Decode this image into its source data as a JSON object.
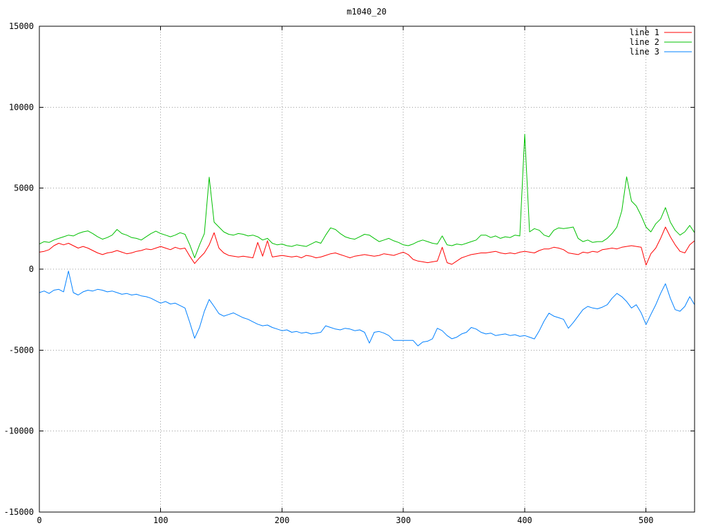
{
  "title": "m1040_20",
  "colors": {
    "background": "#ffffff",
    "border": "#000000",
    "grid": "#9a9a9a",
    "text": "#000000"
  },
  "chart_data": {
    "type": "line",
    "title": "m1040_20",
    "xlabel": "",
    "ylabel": "",
    "xlim": [
      0,
      540
    ],
    "ylim": [
      -15000,
      15000
    ],
    "x_ticks": [
      0,
      100,
      200,
      300,
      400,
      500
    ],
    "y_ticks": [
      -15000,
      -10000,
      -5000,
      0,
      5000,
      10000,
      15000
    ],
    "grid": true,
    "grid_style": "dotted",
    "legend_position": "top-right-inside",
    "x_step": 4,
    "x_start": 0,
    "series": [
      {
        "name": "line 1",
        "color": "#ff0000",
        "values": [
          1050,
          1100,
          1200,
          1450,
          1600,
          1500,
          1600,
          1450,
          1300,
          1400,
          1300,
          1150,
          1000,
          900,
          1000,
          1050,
          1150,
          1050,
          950,
          1000,
          1100,
          1150,
          1250,
          1200,
          1300,
          1400,
          1300,
          1200,
          1350,
          1250,
          1300,
          800,
          350,
          700,
          1000,
          1500,
          2250,
          1300,
          1000,
          850,
          800,
          750,
          800,
          750,
          700,
          1650,
          800,
          1750,
          750,
          800,
          850,
          800,
          750,
          800,
          700,
          850,
          800,
          700,
          750,
          850,
          950,
          1000,
          900,
          800,
          700,
          800,
          850,
          900,
          850,
          800,
          850,
          950,
          900,
          850,
          950,
          1050,
          900,
          600,
          500,
          450,
          400,
          450,
          500,
          1350,
          400,
          300,
          500,
          700,
          800,
          900,
          950,
          1000,
          1000,
          1050,
          1100,
          1000,
          950,
          1000,
          950,
          1050,
          1100,
          1050,
          1000,
          1150,
          1250,
          1250,
          1350,
          1300,
          1200,
          1000,
          950,
          900,
          1050,
          1000,
          1100,
          1050,
          1200,
          1250,
          1300,
          1250,
          1350,
          1400,
          1450,
          1400,
          1350,
          250,
          950,
          1300,
          1900,
          2600,
          2000,
          1500,
          1100,
          1000,
          1500,
          1750
        ]
      },
      {
        "name": "line 2",
        "color": "#00c000",
        "values": [
          1550,
          1700,
          1650,
          1800,
          1900,
          2000,
          2100,
          2050,
          2200,
          2300,
          2360,
          2200,
          2000,
          1850,
          1950,
          2100,
          2450,
          2200,
          2100,
          1950,
          1900,
          1800,
          2000,
          2200,
          2350,
          2200,
          2100,
          2000,
          2100,
          2250,
          2150,
          1500,
          700,
          1500,
          2200,
          5680,
          2900,
          2600,
          2300,
          2150,
          2100,
          2200,
          2150,
          2050,
          2100,
          2000,
          1800,
          1900,
          1600,
          1500,
          1550,
          1450,
          1400,
          1500,
          1450,
          1400,
          1550,
          1700,
          1600,
          2100,
          2550,
          2450,
          2200,
          2000,
          1900,
          1850,
          2000,
          2150,
          2100,
          1900,
          1700,
          1800,
          1900,
          1750,
          1650,
          1500,
          1450,
          1550,
          1700,
          1800,
          1700,
          1600,
          1550,
          2050,
          1500,
          1450,
          1550,
          1500,
          1600,
          1700,
          1800,
          2100,
          2100,
          1950,
          2050,
          1900,
          2000,
          1950,
          2100,
          2050,
          8330,
          2300,
          2500,
          2400,
          2100,
          2000,
          2400,
          2550,
          2500,
          2550,
          2600,
          1900,
          1700,
          1800,
          1650,
          1700,
          1700,
          1900,
          2200,
          2600,
          3600,
          5700,
          4200,
          3900,
          3300,
          2600,
          2300,
          2800,
          3100,
          3800,
          2900,
          2400,
          2100,
          2300,
          2700,
          2250
        ]
      },
      {
        "name": "line 3",
        "color": "#0080ff",
        "values": [
          -1450,
          -1350,
          -1500,
          -1300,
          -1250,
          -1400,
          -120,
          -1450,
          -1600,
          -1400,
          -1300,
          -1350,
          -1250,
          -1300,
          -1400,
          -1350,
          -1450,
          -1550,
          -1500,
          -1600,
          -1550,
          -1650,
          -1700,
          -1800,
          -1950,
          -2100,
          -2000,
          -2150,
          -2100,
          -2250,
          -2400,
          -3300,
          -4270,
          -3600,
          -2600,
          -1870,
          -2300,
          -2750,
          -2900,
          -2800,
          -2700,
          -2850,
          -3000,
          -3100,
          -3250,
          -3400,
          -3500,
          -3450,
          -3600,
          -3700,
          -3800,
          -3750,
          -3900,
          -3850,
          -3950,
          -3900,
          -4000,
          -3950,
          -3900,
          -3500,
          -3600,
          -3700,
          -3750,
          -3650,
          -3700,
          -3800,
          -3750,
          -3900,
          -4570,
          -3900,
          -3850,
          -3950,
          -4100,
          -4400,
          -4400,
          -4400,
          -4400,
          -4400,
          -4740,
          -4500,
          -4450,
          -4300,
          -3650,
          -3800,
          -4100,
          -4300,
          -4200,
          -4000,
          -3900,
          -3600,
          -3700,
          -3900,
          -4000,
          -3950,
          -4100,
          -4050,
          -4000,
          -4100,
          -4050,
          -4150,
          -4100,
          -4200,
          -4310,
          -3800,
          -3200,
          -2720,
          -2900,
          -3000,
          -3100,
          -3650,
          -3300,
          -2900,
          -2500,
          -2300,
          -2400,
          -2450,
          -2350,
          -2200,
          -1800,
          -1500,
          -1700,
          -2000,
          -2400,
          -2200,
          -2700,
          -3420,
          -2800,
          -2200,
          -1500,
          -900,
          -1800,
          -2500,
          -2600,
          -2300,
          -1700,
          -2200
        ]
      }
    ]
  }
}
